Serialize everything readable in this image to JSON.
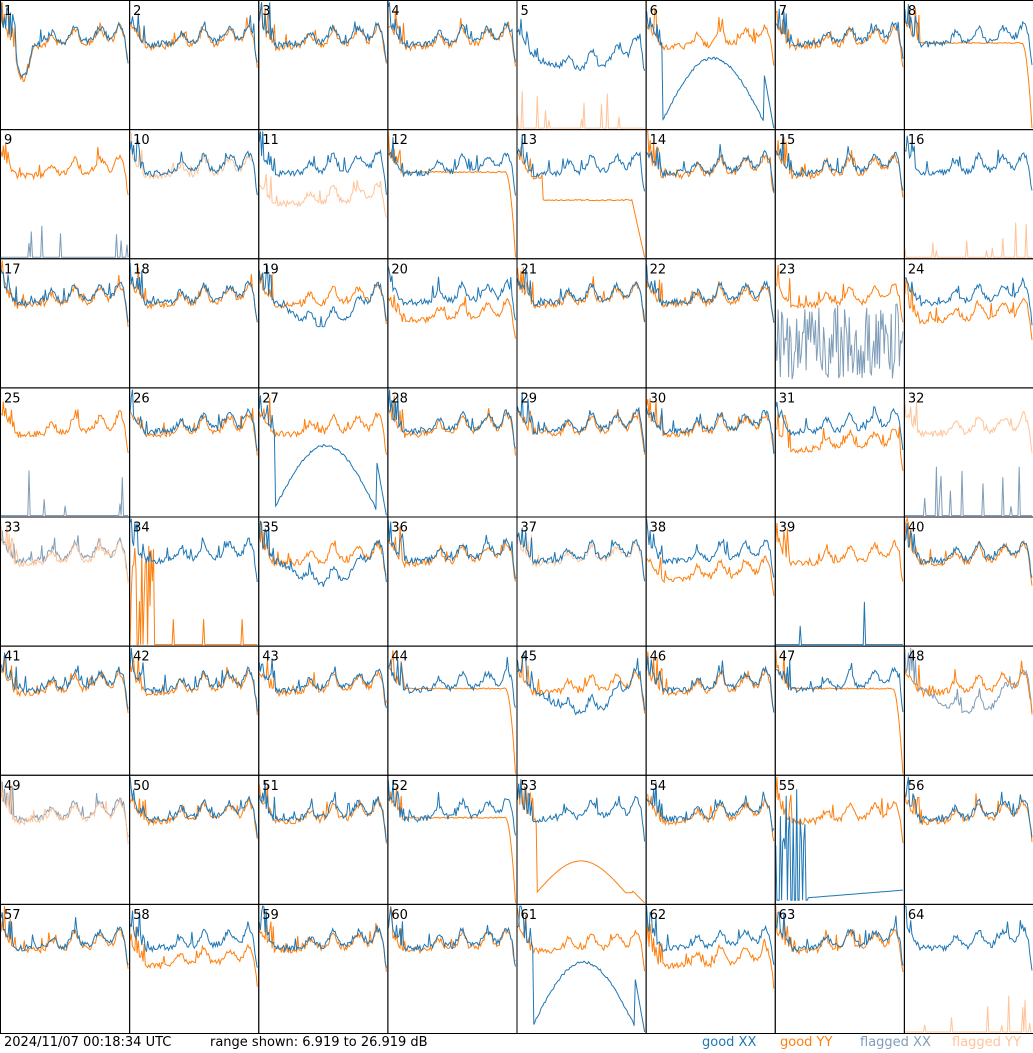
{
  "header": {
    "timestamp": "2024/11/07 00:18:34 UTC",
    "range_text": "range shown: 6.919 to 26.919 dB"
  },
  "legend": [
    {
      "key": "good_xx",
      "label": "good XX",
      "color": "#1f77b4"
    },
    {
      "key": "good_yy",
      "label": "good YY",
      "color": "#ff7f0e"
    },
    {
      "key": "flagged_xx",
      "label": "flagged XX",
      "color": "#7f9db8"
    },
    {
      "key": "flagged_yy",
      "label": "flagged YY",
      "color": "#ffc499"
    }
  ],
  "chart_data": {
    "type": "line",
    "layout": "small-multiples 8x8",
    "ylim": [
      6.919,
      26.919
    ],
    "yunit": "dB",
    "panels": [
      {
        "id": "1",
        "xx": "good",
        "yy": "good",
        "shape": "dip"
      },
      {
        "id": "2",
        "xx": "good",
        "yy": "good",
        "shape": "normal"
      },
      {
        "id": "3",
        "xx": "good",
        "yy": "good",
        "shape": "normal"
      },
      {
        "id": "4",
        "xx": "good",
        "yy": "good",
        "shape": "normal"
      },
      {
        "id": "5",
        "xx": "good",
        "yy": "flagged",
        "shape": "xx_only_low"
      },
      {
        "id": "6",
        "xx": "good",
        "yy": "good",
        "shape": "xx_deep_dip"
      },
      {
        "id": "7",
        "xx": "good",
        "yy": "good",
        "shape": "normal"
      },
      {
        "id": "8",
        "xx": "good",
        "yy": "good",
        "shape": "dropend"
      },
      {
        "id": "9",
        "xx": "flagged",
        "yy": "good",
        "shape": "xx_spikes"
      },
      {
        "id": "10",
        "xx": "good",
        "yy": "flagged",
        "shape": "normal"
      },
      {
        "id": "11",
        "xx": "good",
        "yy": "flagged",
        "shape": "yy_low"
      },
      {
        "id": "12",
        "xx": "good",
        "yy": "good",
        "shape": "dropend"
      },
      {
        "id": "13",
        "xx": "good",
        "yy": "good",
        "shape": "yy_drop"
      },
      {
        "id": "14",
        "xx": "good",
        "yy": "good",
        "shape": "normal"
      },
      {
        "id": "15",
        "xx": "good",
        "yy": "good",
        "shape": "normal"
      },
      {
        "id": "16",
        "xx": "good",
        "yy": "flagged",
        "shape": "xx_only"
      },
      {
        "id": "17",
        "xx": "good",
        "yy": "good",
        "shape": "normal"
      },
      {
        "id": "18",
        "xx": "good",
        "yy": "good",
        "shape": "normal"
      },
      {
        "id": "19",
        "xx": "good",
        "yy": "good",
        "shape": "xx_dip"
      },
      {
        "id": "20",
        "xx": "good",
        "yy": "good",
        "shape": "yy_lower"
      },
      {
        "id": "21",
        "xx": "good",
        "yy": "good",
        "shape": "normal"
      },
      {
        "id": "22",
        "xx": "good",
        "yy": "good",
        "shape": "normal"
      },
      {
        "id": "23",
        "xx": "flagged",
        "yy": "good",
        "shape": "xx_noise"
      },
      {
        "id": "24",
        "xx": "good",
        "yy": "good",
        "shape": "yy_lower"
      },
      {
        "id": "25",
        "xx": "flagged",
        "yy": "good",
        "shape": "yy_only"
      },
      {
        "id": "26",
        "xx": "good",
        "yy": "good",
        "shape": "normal"
      },
      {
        "id": "27",
        "xx": "good",
        "yy": "good",
        "shape": "xx_deep_dip"
      },
      {
        "id": "28",
        "xx": "good",
        "yy": "good",
        "shape": "normal"
      },
      {
        "id": "29",
        "xx": "good",
        "yy": "good",
        "shape": "normal"
      },
      {
        "id": "30",
        "xx": "good",
        "yy": "good",
        "shape": "normal"
      },
      {
        "id": "31",
        "xx": "good",
        "yy": "good",
        "shape": "yy_lower"
      },
      {
        "id": "32",
        "xx": "flagged",
        "yy": "flagged",
        "shape": "yy_only"
      },
      {
        "id": "33",
        "xx": "flagged",
        "yy": "flagged",
        "shape": "normal"
      },
      {
        "id": "34",
        "xx": "good",
        "yy": "good",
        "shape": "yy_spikes"
      },
      {
        "id": "35",
        "xx": "good",
        "yy": "good",
        "shape": "xx_dip"
      },
      {
        "id": "36",
        "xx": "good",
        "yy": "good",
        "shape": "normal"
      },
      {
        "id": "37",
        "xx": "good",
        "yy": "flagged",
        "shape": "normal"
      },
      {
        "id": "38",
        "xx": "good",
        "yy": "good",
        "shape": "yy_lower"
      },
      {
        "id": "39",
        "xx": "good",
        "yy": "good",
        "shape": "yy_only"
      },
      {
        "id": "40",
        "xx": "good",
        "yy": "good",
        "shape": "normal"
      },
      {
        "id": "41",
        "xx": "good",
        "yy": "good",
        "shape": "normal"
      },
      {
        "id": "42",
        "xx": "good",
        "yy": "good",
        "shape": "normal"
      },
      {
        "id": "43",
        "xx": "good",
        "yy": "good",
        "shape": "normal"
      },
      {
        "id": "44",
        "xx": "good",
        "yy": "good",
        "shape": "dropend"
      },
      {
        "id": "45",
        "xx": "good",
        "yy": "good",
        "shape": "xx_dip"
      },
      {
        "id": "46",
        "xx": "good",
        "yy": "good",
        "shape": "normal"
      },
      {
        "id": "47",
        "xx": "good",
        "yy": "good",
        "shape": "dropend"
      },
      {
        "id": "48",
        "xx": "flagged",
        "yy": "good",
        "shape": "xx_dip"
      },
      {
        "id": "49",
        "xx": "flagged",
        "yy": "flagged",
        "shape": "normal"
      },
      {
        "id": "50",
        "xx": "good",
        "yy": "good",
        "shape": "normal"
      },
      {
        "id": "51",
        "xx": "good",
        "yy": "good",
        "shape": "normal"
      },
      {
        "id": "52",
        "xx": "good",
        "yy": "good",
        "shape": "dropend"
      },
      {
        "id": "53",
        "xx": "good",
        "yy": "good",
        "shape": "yy_dip"
      },
      {
        "id": "54",
        "xx": "good",
        "yy": "good",
        "shape": "normal"
      },
      {
        "id": "55",
        "xx": "good",
        "yy": "good",
        "shape": "xx_low_spikes"
      },
      {
        "id": "56",
        "xx": "good",
        "yy": "good",
        "shape": "normal"
      },
      {
        "id": "57",
        "xx": "good",
        "yy": "good",
        "shape": "normal"
      },
      {
        "id": "58",
        "xx": "good",
        "yy": "good",
        "shape": "yy_lower"
      },
      {
        "id": "59",
        "xx": "good",
        "yy": "good",
        "shape": "normal"
      },
      {
        "id": "60",
        "xx": "good",
        "yy": "good",
        "shape": "normal"
      },
      {
        "id": "61",
        "xx": "good",
        "yy": "good",
        "shape": "xx_deep_dip"
      },
      {
        "id": "62",
        "xx": "good",
        "yy": "good",
        "shape": "yy_lower"
      },
      {
        "id": "63",
        "xx": "good",
        "yy": "good",
        "shape": "normal"
      },
      {
        "id": "64",
        "xx": "good",
        "yy": "flagged",
        "shape": "xx_only"
      }
    ]
  }
}
